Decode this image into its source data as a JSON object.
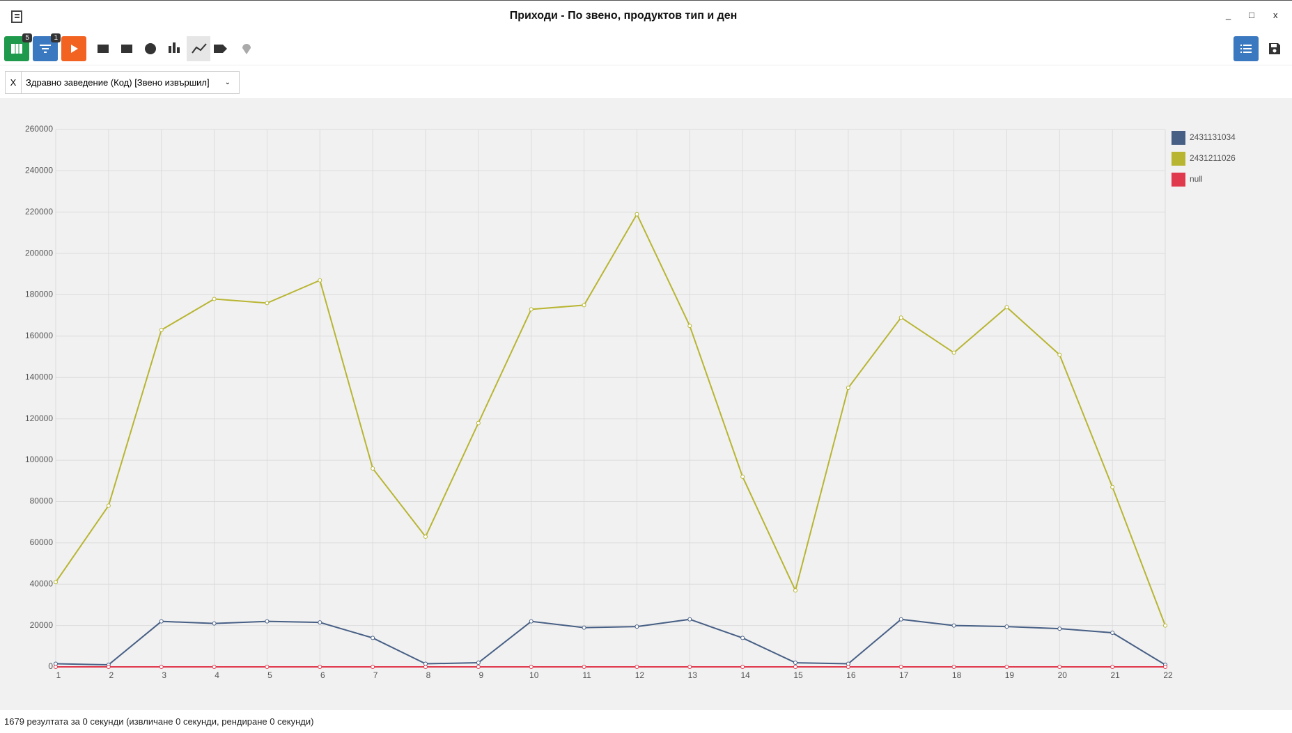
{
  "window": {
    "title": "Приходи - По звено, продуктов тип и ден",
    "controls": [
      "_",
      "□",
      "x"
    ]
  },
  "toolbar": {
    "badges": [
      "5",
      "1"
    ]
  },
  "filter": {
    "remove": "X",
    "label": "Здравно заведение (Код) [Звено извършил]"
  },
  "chart_data": {
    "type": "line",
    "categories": [
      "1",
      "2",
      "3",
      "4",
      "5",
      "6",
      "7",
      "8",
      "9",
      "10",
      "11",
      "12",
      "13",
      "14",
      "15",
      "16",
      "17",
      "18",
      "19",
      "20",
      "21",
      "22"
    ],
    "series": [
      {
        "name": "2431131034",
        "color": "#475f85",
        "values": [
          1500,
          1000,
          22000,
          21000,
          22000,
          21500,
          14000,
          1500,
          2000,
          22000,
          19000,
          19500,
          23000,
          14000,
          2000,
          1500,
          23000,
          20000,
          19500,
          18500,
          16500,
          1000
        ]
      },
      {
        "name": "2431211026",
        "color": "#b8b531",
        "values": [
          41000,
          78000,
          163000,
          178000,
          176000,
          187000,
          96000,
          63000,
          118000,
          173000,
          175000,
          219000,
          165000,
          92000,
          37000,
          135000,
          169000,
          152000,
          174000,
          151000,
          87000,
          20000
        ]
      },
      {
        "name": "null",
        "color": "#e0384c",
        "values": [
          0,
          0,
          0,
          0,
          0,
          0,
          0,
          0,
          0,
          0,
          0,
          0,
          0,
          0,
          0,
          0,
          0,
          0,
          0,
          0,
          0,
          0
        ]
      }
    ],
    "ylim": [
      0,
      260000
    ],
    "yticks": [
      0,
      20000,
      40000,
      60000,
      80000,
      100000,
      120000,
      140000,
      160000,
      180000,
      200000,
      220000,
      240000,
      260000
    ],
    "grid": true
  },
  "footer": "1679 резултата за 0 секунди (извличане 0 секунди, рендиране 0 секунди)"
}
